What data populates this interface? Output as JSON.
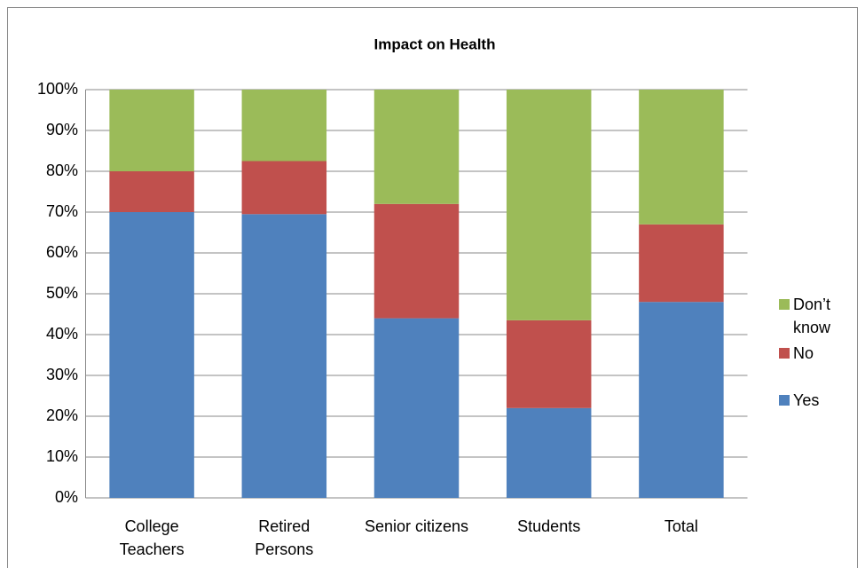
{
  "chart_data": {
    "type": "stacked_bar_100",
    "title": "Impact on Health",
    "categories": [
      "College Teachers",
      "Retired Persons",
      "Senior citizens",
      "Students",
      "Total"
    ],
    "series": [
      {
        "name": "Yes",
        "color": "#4f81bd",
        "values": [
          70,
          69.5,
          44,
          22,
          48
        ]
      },
      {
        "name": "No",
        "color": "#c0504d",
        "values": [
          10,
          13,
          28,
          21.5,
          19
        ]
      },
      {
        "name": "Don’t know",
        "color": "#9bbb59",
        "values": [
          20,
          17.5,
          28,
          56.5,
          33
        ]
      }
    ],
    "ylim": [
      0,
      100
    ],
    "yticks": [
      {
        "value": 0,
        "label": "0%"
      },
      {
        "value": 10,
        "label": "10%"
      },
      {
        "value": 20,
        "label": "20%"
      },
      {
        "value": 30,
        "label": "30%"
      },
      {
        "value": 40,
        "label": "40%"
      },
      {
        "value": 50,
        "label": "50%"
      },
      {
        "value": 60,
        "label": "60%"
      },
      {
        "value": 70,
        "label": "70%"
      },
      {
        "value": 80,
        "label": "80%"
      },
      {
        "value": 90,
        "label": "90%"
      },
      {
        "value": 100,
        "label": "100%"
      }
    ],
    "grid": true,
    "legend": "right"
  }
}
